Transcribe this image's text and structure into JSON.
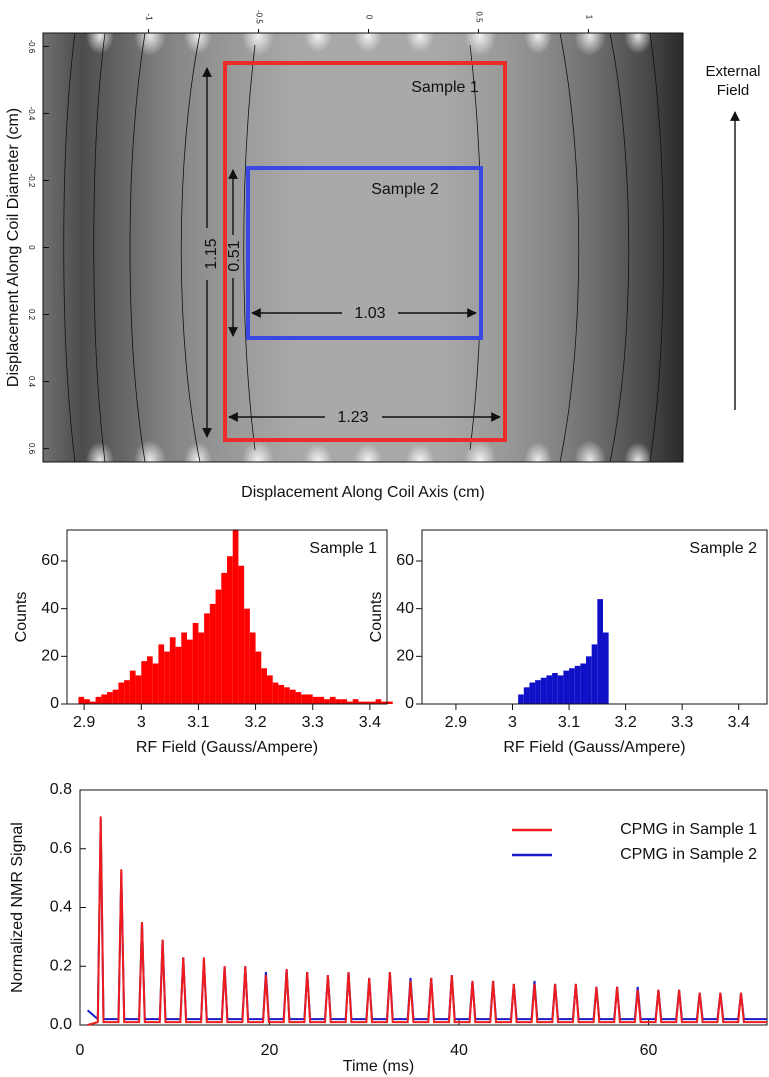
{
  "chart_data": [
    {
      "type": "contour",
      "x_label": "Displacement Along Coil Axis (cm)",
      "y_label": "Displacement Along Coil Diameter (cm)",
      "xlim": [
        -1.48,
        1.43
      ],
      "xticks": [
        -1,
        -0.5,
        0,
        0.5,
        1
      ],
      "ylim": [
        0.64,
        -0.64
      ],
      "yticks": [
        -0.6,
        -0.4,
        -0.2,
        0,
        0.2,
        0.4,
        0.6
      ],
      "annotations": [
        "Sample 1",
        "Sample 2",
        "1.15",
        "0.51",
        "1.03",
        "1.23",
        "External Field"
      ]
    },
    {
      "type": "histogram",
      "title": "Sample 1",
      "color": "#ff0000",
      "x_label": "RF Field (Gauss/Ampere)",
      "y_label": "Counts",
      "bins": [
        2.89,
        2.9,
        2.91,
        2.92,
        2.93,
        2.94,
        2.95,
        2.96,
        2.97,
        2.98,
        2.99,
        3,
        3.01,
        3.02,
        3.03,
        3.04,
        3.05,
        3.06,
        3.07,
        3.08,
        3.09,
        3.1,
        3.11,
        3.12,
        3.13,
        3.14,
        3.15,
        3.16,
        3.17,
        3.18,
        3.19,
        3.2,
        3.21,
        3.22,
        3.23,
        3.24,
        3.25,
        3.26,
        3.27,
        3.28,
        3.29,
        3.3,
        3.31,
        3.32,
        3.33,
        3.34,
        3.35,
        3.36,
        3.37,
        3.38,
        3.39,
        3.4,
        3.41,
        3.42,
        3.43,
        3.44
      ],
      "values": [
        3,
        2,
        1,
        3,
        4,
        5,
        6,
        9,
        10,
        14,
        12,
        18,
        20,
        17,
        25,
        22,
        28,
        24,
        30,
        27,
        34,
        30,
        38,
        42,
        48,
        55,
        62,
        73,
        58,
        40,
        30,
        22,
        15,
        12,
        9,
        8,
        7,
        6,
        5,
        4,
        4,
        3,
        3,
        2,
        3,
        2,
        2,
        1,
        2,
        1,
        1,
        1,
        2,
        1,
        1
      ],
      "xlim": [
        2.87,
        3.43
      ],
      "xticks": [
        2.9,
        3,
        3.1,
        3.2,
        3.3,
        3.4
      ],
      "ylim": [
        0,
        73
      ],
      "yticks": [
        0,
        20,
        40,
        60
      ]
    },
    {
      "type": "histogram",
      "title": "Sample 2",
      "color": "#1010c8",
      "x_label": "RF Field (Gauss/Ampere)",
      "y_label": "Counts",
      "bins": [
        3.01,
        3.02,
        3.03,
        3.04,
        3.05,
        3.06,
        3.07,
        3.08,
        3.09,
        3.1,
        3.11,
        3.12,
        3.13,
        3.14,
        3.15,
        3.16,
        3.17
      ],
      "values": [
        4,
        7,
        9,
        10,
        11,
        12,
        13,
        12,
        14,
        15,
        16,
        17,
        20,
        25,
        44,
        30
      ],
      "xlim": [
        2.84,
        3.45
      ],
      "xticks": [
        2.9,
        3,
        3.1,
        3.2,
        3.3,
        3.4
      ],
      "ylim": [
        0,
        73
      ],
      "yticks": [
        0,
        20,
        40,
        60
      ]
    },
    {
      "type": "line",
      "x_label": "Time (ms)",
      "y_label": "Normalized NMR Signal",
      "legend": "upper right",
      "x": [
        0.8,
        1.88,
        2.18,
        2.48,
        4.06,
        4.36,
        4.66,
        6.24,
        6.54,
        6.84,
        8.42,
        8.72,
        9.02,
        10.6,
        10.9,
        11.2,
        12.78,
        13.08,
        13.38,
        14.96,
        15.26,
        15.56,
        17.14,
        17.44,
        17.74,
        19.32,
        19.62,
        19.92,
        21.5,
        21.8,
        22.1,
        23.68,
        23.98,
        24.28,
        25.86,
        26.16,
        26.46,
        28.04,
        28.34,
        28.64,
        30.22,
        30.52,
        30.82,
        32.4,
        32.7,
        33,
        34.58,
        34.88,
        35.18,
        36.76,
        37.06,
        37.36,
        38.94,
        39.24,
        39.54,
        41.12,
        41.42,
        41.72,
        43.3,
        43.6,
        43.9,
        45.48,
        45.78,
        46.08,
        47.66,
        47.96,
        48.26,
        49.84,
        50.14,
        50.44,
        52.02,
        52.32,
        52.62,
        54.2,
        54.5,
        54.8,
        56.38,
        56.68,
        56.98,
        58.56,
        58.86,
        59.16,
        60.74,
        61.04,
        61.34,
        62.92,
        63.22,
        63.52,
        65.1,
        65.4,
        65.7,
        67.28,
        67.58,
        67.88,
        69.46,
        69.76,
        70.06,
        72.5
      ],
      "series": [
        {
          "name": "CPMG in Sample 1",
          "color": "#ee1c1c",
          "values": [
            0,
            0.01,
            0.71,
            0.01,
            0.01,
            0.53,
            0.01,
            0.01,
            0.35,
            0.01,
            0.01,
            0.29,
            0.01,
            0.01,
            0.23,
            0.01,
            0.01,
            0.23,
            0.01,
            0.01,
            0.2,
            0.01,
            0.01,
            0.2,
            0.01,
            0.01,
            0.17,
            0.01,
            0.01,
            0.19,
            0.01,
            0.01,
            0.18,
            0.01,
            0.01,
            0.17,
            0.01,
            0.01,
            0.18,
            0.01,
            0.01,
            0.16,
            0.01,
            0.01,
            0.18,
            0.01,
            0.01,
            0.15,
            0.01,
            0.01,
            0.16,
            0.01,
            0.01,
            0.17,
            0.01,
            0.01,
            0.15,
            0.01,
            0.01,
            0.15,
            0.01,
            0.01,
            0.14,
            0.01,
            0.01,
            0.14,
            0.01,
            0.01,
            0.14,
            0.01,
            0.01,
            0.14,
            0.01,
            0.01,
            0.13,
            0.01,
            0.01,
            0.13,
            0.01,
            0.01,
            0.12,
            0.01,
            0.01,
            0.12,
            0.01,
            0.01,
            0.12,
            0.01,
            0.01,
            0.11,
            0.01,
            0.01,
            0.11,
            0.01,
            0.01,
            0.11,
            0.01,
            0.01
          ]
        },
        {
          "name": "CPMG in Sample 2",
          "color": "#1a1acc",
          "values": [
            0.05,
            0.02,
            0.7,
            0.02,
            0.02,
            0.52,
            0.02,
            0.02,
            0.35,
            0.02,
            0.02,
            0.29,
            0.02,
            0.02,
            0.23,
            0.02,
            0.02,
            0.22,
            0.02,
            0.02,
            0.2,
            0.02,
            0.02,
            0.2,
            0.02,
            0.02,
            0.18,
            0.02,
            0.02,
            0.19,
            0.02,
            0.02,
            0.18,
            0.02,
            0.02,
            0.17,
            0.02,
            0.02,
            0.18,
            0.02,
            0.02,
            0.16,
            0.02,
            0.02,
            0.18,
            0.02,
            0.02,
            0.16,
            0.02,
            0.02,
            0.16,
            0.02,
            0.02,
            0.17,
            0.02,
            0.02,
            0.15,
            0.02,
            0.02,
            0.15,
            0.02,
            0.02,
            0.14,
            0.02,
            0.02,
            0.15,
            0.02,
            0.02,
            0.14,
            0.02,
            0.02,
            0.14,
            0.02,
            0.02,
            0.13,
            0.02,
            0.02,
            0.13,
            0.02,
            0.02,
            0.13,
            0.02,
            0.02,
            0.12,
            0.02,
            0.02,
            0.12,
            0.02,
            0.02,
            0.11,
            0.02,
            0.02,
            0.11,
            0.02,
            0.02,
            0.11,
            0.02,
            0.02
          ]
        }
      ],
      "xlim": [
        0,
        72.5
      ],
      "xticks": [
        0,
        20,
        40,
        60
      ],
      "ylim": [
        0,
        0.8
      ],
      "yticks": [
        {
          "value": 0,
          "label": "0.0"
        },
        0.2,
        0.4,
        0.6,
        0.8
      ]
    }
  ]
}
